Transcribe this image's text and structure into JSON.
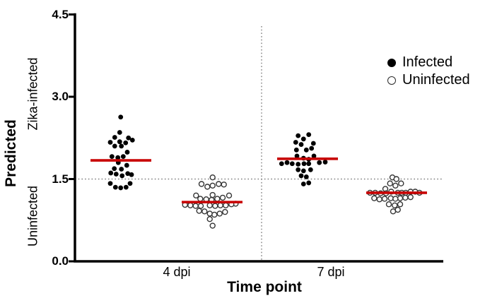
{
  "chart_data": {
    "type": "scatter",
    "title": "",
    "xlabel": "Time point",
    "ylabel": "Predicted",
    "y_region_labels": {
      "upper": "Zika-infected",
      "lower": "Uninfected"
    },
    "yticks": [
      "0.0",
      "1.5",
      "3.0",
      "4.5"
    ],
    "ylim": [
      0,
      4.5
    ],
    "threshold": 1.5,
    "categories": [
      "4 dpi",
      "7 dpi"
    ],
    "legend": [
      {
        "label": "Infected",
        "marker": "filled-circle"
      },
      {
        "label": "Uninfected",
        "marker": "open-circle"
      }
    ],
    "colors": {
      "mean_line": "#c80000",
      "marker": "#000000",
      "threshold_line": "#7f7f7f",
      "axis": "#000000"
    },
    "grid": false,
    "legend_position": "top-right",
    "groups": [
      {
        "category": "4 dpi",
        "series": "Infected",
        "marker": "filled",
        "mean": 1.84,
        "points": [
          [
            -0.3,
            2.63
          ],
          [
            -1.7,
            2.35
          ],
          [
            -8.7,
            2.26
          ],
          [
            10.7,
            2.25
          ],
          [
            16.3,
            2.21
          ],
          [
            -1.7,
            2.18
          ],
          [
            -15,
            2.17
          ],
          [
            6.7,
            2.16
          ],
          [
            -8.7,
            2.1
          ],
          [
            0.7,
            2.1
          ],
          [
            9,
            1.99
          ],
          [
            -12.7,
            1.91
          ],
          [
            3.3,
            1.91
          ],
          [
            -4.3,
            1.89
          ],
          [
            -3.7,
            1.8
          ],
          [
            8.3,
            1.75
          ],
          [
            -9.3,
            1.69
          ],
          [
            0.7,
            1.68
          ],
          [
            -14.3,
            1.61
          ],
          [
            9.7,
            1.6
          ],
          [
            -6.7,
            1.59
          ],
          [
            15,
            1.58
          ],
          [
            1.7,
            1.56
          ],
          [
            -15,
            1.42
          ],
          [
            13,
            1.42
          ],
          [
            -7.7,
            1.35
          ],
          [
            7.3,
            1.35
          ],
          [
            -0.3,
            1.34
          ]
        ]
      },
      {
        "category": "4 dpi",
        "series": "Uninfected",
        "marker": "open",
        "mean": 1.08,
        "points": [
          [
            0.7,
            1.53
          ],
          [
            -15,
            1.41
          ],
          [
            9.3,
            1.41
          ],
          [
            16.7,
            1.4
          ],
          [
            0.7,
            1.38
          ],
          [
            -6.7,
            1.36
          ],
          [
            0.7,
            1.21
          ],
          [
            -22.7,
            1.2
          ],
          [
            24,
            1.2
          ],
          [
            15,
            1.16
          ],
          [
            -16.7,
            1.14
          ],
          [
            7.3,
            1.14
          ],
          [
            -8.3,
            1.13
          ],
          [
            -0.7,
            1.12
          ],
          [
            33.3,
            1.05
          ],
          [
            27.3,
            1.04
          ],
          [
            -38.3,
            1.03
          ],
          [
            -30.7,
            1.02
          ],
          [
            -3.3,
            1.02
          ],
          [
            11.7,
            1.02
          ],
          [
            19.3,
            1.02
          ],
          [
            -23.3,
            1.01
          ],
          [
            -16,
            1.01
          ],
          [
            4.3,
            1.01
          ],
          [
            -18.3,
            0.92
          ],
          [
            -10.7,
            0.91
          ],
          [
            18.3,
            0.9
          ],
          [
            -3.3,
            0.87
          ],
          [
            10.7,
            0.87
          ],
          [
            3.3,
            0.85
          ],
          [
            -3.3,
            0.77
          ],
          [
            0.7,
            0.65
          ]
        ]
      },
      {
        "category": "7 dpi",
        "series": "Infected",
        "marker": "filled",
        "mean": 1.87,
        "points": [
          [
            1.7,
            2.31
          ],
          [
            -13.3,
            2.29
          ],
          [
            -5.7,
            2.23
          ],
          [
            -16.7,
            2.17
          ],
          [
            8.3,
            2.15
          ],
          [
            -9,
            2.13
          ],
          [
            5.7,
            2.06
          ],
          [
            -15.7,
            2.03
          ],
          [
            -1.7,
            2.03
          ],
          [
            -15,
            1.92
          ],
          [
            9,
            1.92
          ],
          [
            -5.7,
            1.88
          ],
          [
            1.7,
            1.86
          ],
          [
            25,
            1.81
          ],
          [
            -29,
            1.8
          ],
          [
            16.7,
            1.8
          ],
          [
            -36.7,
            1.78
          ],
          [
            -21.7,
            1.78
          ],
          [
            -5,
            1.78
          ],
          [
            1.7,
            1.78
          ],
          [
            -13.3,
            1.77
          ],
          [
            -13.3,
            1.67
          ],
          [
            4.3,
            1.67
          ],
          [
            -5.7,
            1.65
          ],
          [
            -9,
            1.56
          ],
          [
            -1.7,
            1.54
          ],
          [
            1.7,
            1.43
          ],
          [
            -5.7,
            1.41
          ]
        ]
      },
      {
        "category": "7 dpi",
        "series": "Uninfected",
        "marker": "open",
        "mean": 1.25,
        "points": [
          [
            -6,
            1.53
          ],
          [
            -0.3,
            1.5
          ],
          [
            -9.3,
            1.42
          ],
          [
            6.3,
            1.42
          ],
          [
            -1.7,
            1.38
          ],
          [
            -16,
            1.32
          ],
          [
            -7.7,
            1.27
          ],
          [
            19.7,
            1.27
          ],
          [
            26.3,
            1.27
          ],
          [
            -37.7,
            1.25
          ],
          [
            -30.3,
            1.25
          ],
          [
            1.7,
            1.25
          ],
          [
            7.3,
            1.25
          ],
          [
            13,
            1.25
          ],
          [
            32.3,
            1.25
          ],
          [
            -22.7,
            1.24
          ],
          [
            -15,
            1.24
          ],
          [
            19.7,
            1.17
          ],
          [
            12.3,
            1.16
          ],
          [
            -31.7,
            1.15
          ],
          [
            -8.3,
            1.15
          ],
          [
            5,
            1.15
          ],
          [
            -17,
            1.14
          ],
          [
            -1.7,
            1.14
          ],
          [
            -24.3,
            1.13
          ],
          [
            -11,
            1.04
          ],
          [
            5,
            1.04
          ],
          [
            -2.7,
            1.02
          ],
          [
            1.7,
            0.94
          ],
          [
            -5,
            0.91
          ]
        ]
      }
    ]
  }
}
